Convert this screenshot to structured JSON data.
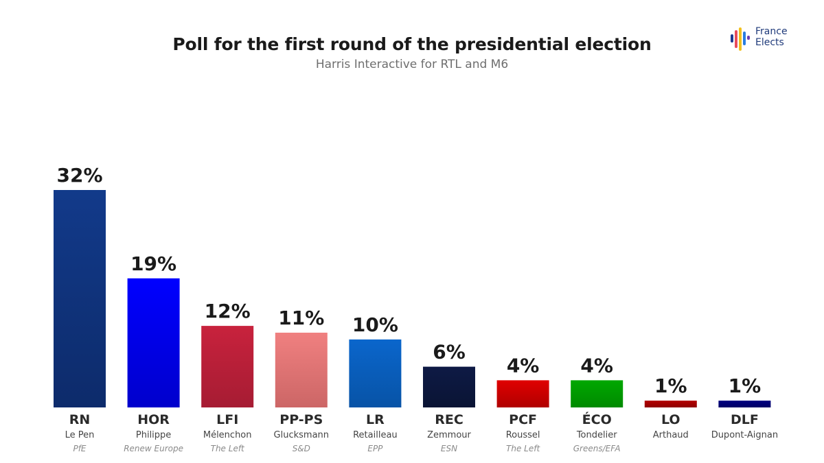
{
  "header": {
    "title": "Poll for the first round of the presidential election",
    "subtitle": "Harris Interactive for RTL and M6"
  },
  "logo": {
    "line1": "France",
    "line2": "Elects",
    "stripe_colors": [
      "#1f3a93",
      "#e84b5b",
      "#f2c01d",
      "#2a7de1",
      "#6a3fb5"
    ]
  },
  "chart_data": {
    "type": "bar",
    "title": "Poll for the first round of the presidential election",
    "subtitle": "Harris Interactive for RTL and M6",
    "xlabel": "",
    "ylabel": "",
    "ylim": [
      0,
      32
    ],
    "grid": false,
    "legend": "none",
    "value_suffix": "%",
    "categories": [
      "RN",
      "HOR",
      "LFI",
      "PP-PS",
      "LR",
      "REC",
      "PCF",
      "ÉCO",
      "LO",
      "DLF"
    ],
    "candidates": [
      "Le Pen",
      "Philippe",
      "Mélenchon",
      "Glucksmann",
      "Retailleau",
      "Zemmour",
      "Roussel",
      "Tondelier",
      "Arthaud",
      "Dupont-Aignan"
    ],
    "groups": [
      "PfE",
      "Renew Europe",
      "The Left",
      "S&D",
      "EPP",
      "ESN",
      "The Left",
      "Greens/EFA",
      "",
      ""
    ],
    "values": [
      32,
      19,
      12,
      11,
      10,
      6,
      4,
      4,
      1,
      1
    ],
    "colors": [
      [
        "#123a8a",
        "#0d2b6b"
      ],
      [
        "#0000ff",
        "#0000cc"
      ],
      [
        "#c8223d",
        "#a61c33"
      ],
      [
        "#f08080",
        "#cc6666"
      ],
      [
        "#0a66cc",
        "#0853a6"
      ],
      [
        "#0e1a45",
        "#0a1434"
      ],
      [
        "#e00000",
        "#b00000"
      ],
      [
        "#00a800",
        "#008a00"
      ],
      [
        "#b30000",
        "#8f0000"
      ],
      [
        "#000080",
        "#000066"
      ]
    ]
  }
}
